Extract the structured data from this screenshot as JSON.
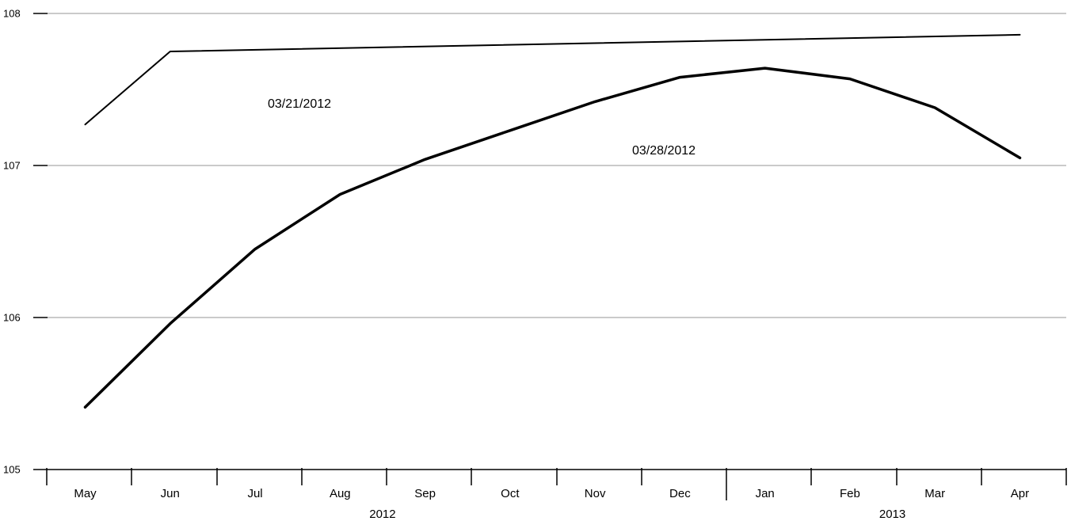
{
  "chart_data": {
    "type": "line",
    "title": "",
    "xlabel": "",
    "ylabel": "",
    "ylim": [
      105,
      108
    ],
    "yticks": [
      "105",
      "106",
      "107",
      "108"
    ],
    "months": [
      "May",
      "Jun",
      "Jul",
      "Aug",
      "Sep",
      "Oct",
      "Nov",
      "Dec",
      "Jan",
      "Feb",
      "Mar",
      "Apr"
    ],
    "years": [
      {
        "label": "2012",
        "start": 0,
        "end": 7
      },
      {
        "label": "2013",
        "start": 8,
        "end": 11
      }
    ],
    "grid": true,
    "series": [
      {
        "name": "03/21/2012",
        "values": [
          107.27,
          107.75,
          null,
          null,
          null,
          null,
          null,
          null,
          null,
          null,
          null,
          107.86
        ],
        "color": "#000000",
        "width": 2
      },
      {
        "name": "03/28/2012",
        "values": [
          105.41,
          105.96,
          106.45,
          106.81,
          107.04,
          107.23,
          107.42,
          107.58,
          107.64,
          107.57,
          107.38,
          107.05
        ],
        "color": "#000000",
        "width": 3.5
      }
    ]
  }
}
